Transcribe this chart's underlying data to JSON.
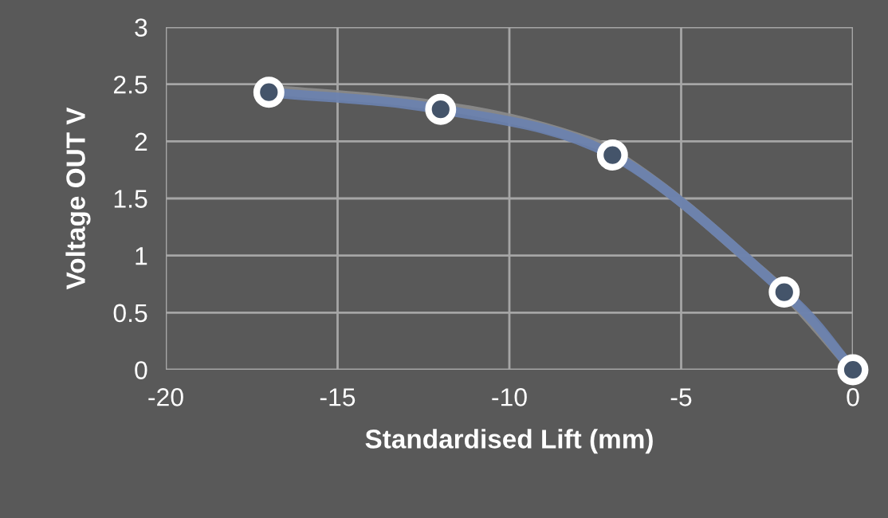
{
  "chart_data": {
    "type": "line",
    "xlabel": "Standardised Lift (mm)",
    "ylabel": "Voltage OUT V",
    "x": [
      -17,
      -12,
      -7,
      -2,
      0
    ],
    "series": [
      {
        "color": "#8c8c8c",
        "x": [
          -17,
          -14,
          -12,
          -10,
          -8,
          -7,
          -5,
          -3,
          -2,
          -1,
          0
        ],
        "values": [
          2.45,
          2.38,
          2.31,
          2.2,
          2.03,
          1.9,
          1.47,
          0.95,
          0.68,
          0.35,
          0
        ],
        "marker": "none"
      },
      {
        "color": "#6a82b0",
        "values": [
          2.43,
          2.28,
          1.88,
          0.68,
          0
        ],
        "marker": "circle"
      }
    ],
    "xlim": [
      -20,
      0
    ],
    "xticks": [
      -20,
      -15,
      -10,
      -5,
      0
    ],
    "ylim": [
      0,
      3
    ],
    "yticks": [
      0,
      0.5,
      1,
      1.5,
      2,
      2.5,
      3
    ],
    "grid": true,
    "line_style": "solid"
  }
}
